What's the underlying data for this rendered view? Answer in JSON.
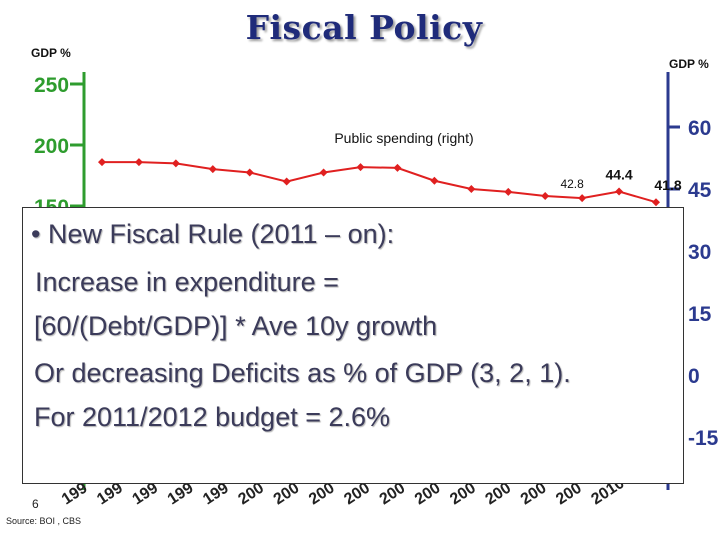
{
  "slide": {
    "title": "Fiscal Policy",
    "page_number": "6",
    "source": "Source: BOI , CBS"
  },
  "bullet": {
    "lines": [
      "• New Fiscal Rule (2011 – on):",
      " Increase in expenditure =",
      "[60/(Debt/GDP)] * Ave 10y growth",
      "Or decreasing Deficits as % of GDP (3, 2, 1).",
      "For 2011/2012 budget = 2.6%"
    ]
  },
  "chart_data": {
    "type": "line",
    "left_axis": {
      "label": "GDP %",
      "ticks": [
        "250",
        "200",
        "150"
      ],
      "tick_values": [
        250,
        200,
        150
      ],
      "color": "#2e9c2e"
    },
    "right_axis": {
      "label": "GDP %",
      "ticks": [
        "60",
        "45",
        "30",
        "15",
        "0",
        "-15"
      ],
      "tick_values": [
        60,
        45,
        30,
        15,
        0,
        -15
      ],
      "color": "#2b3a8f"
    },
    "x_tick_labels": [
      "199",
      "199",
      "199",
      "199",
      "199",
      "200",
      "200",
      "200",
      "200",
      "200",
      "200",
      "200",
      "200",
      "200",
      "200",
      "2010"
    ],
    "series": [
      {
        "name": "Public spending (right)",
        "axis": "right",
        "color": "#e02020",
        "values": [
          51.5,
          51.5,
          51.2,
          49.8,
          49.0,
          46.8,
          49.0,
          50.3,
          50.1,
          47.0,
          45.0,
          44.3,
          43.3,
          42.8,
          44.4,
          41.8
        ]
      }
    ],
    "data_labels": [
      {
        "index": 13,
        "text": "42.8"
      },
      {
        "index": 14,
        "text": "44.4"
      },
      {
        "index": 15,
        "text": "41.8"
      }
    ]
  }
}
